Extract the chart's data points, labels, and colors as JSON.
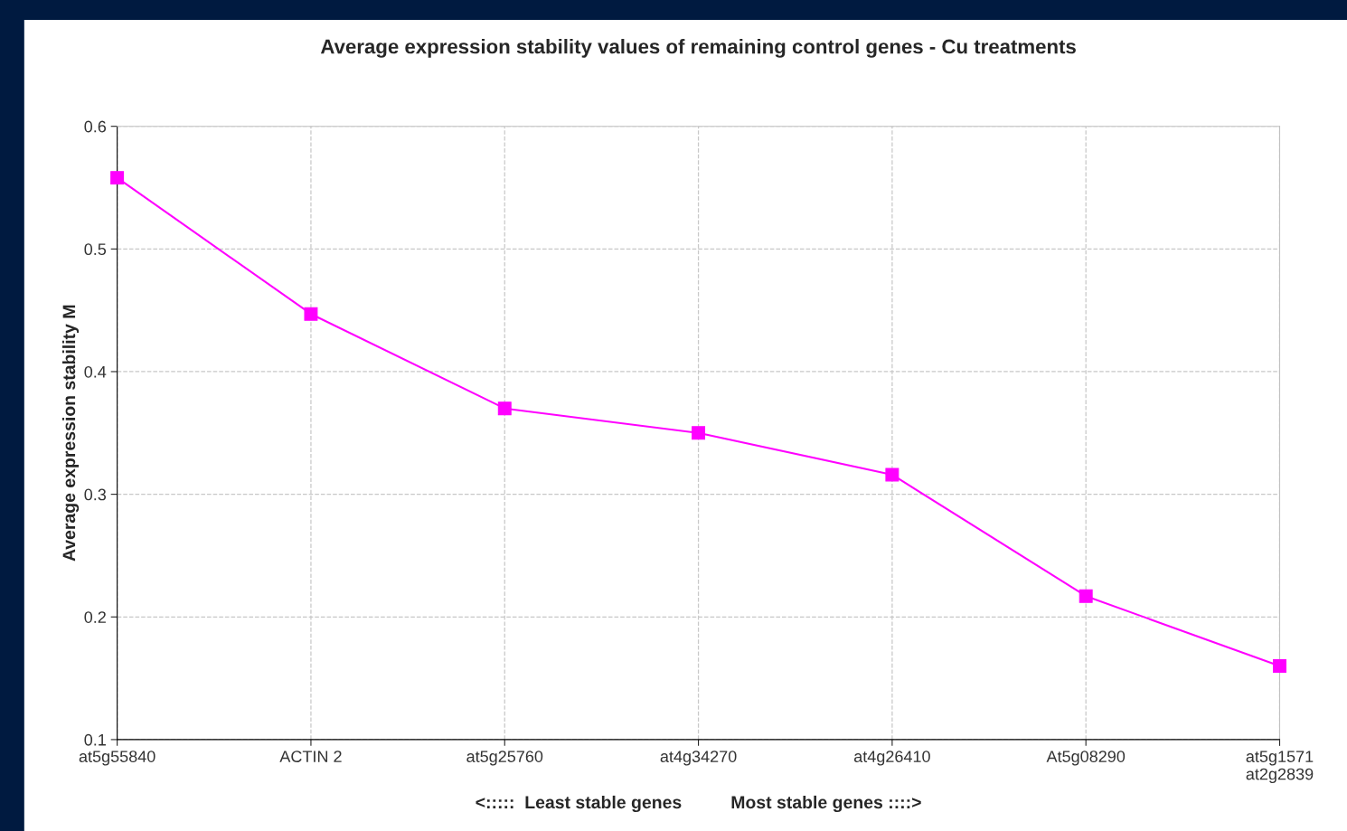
{
  "chart_data": {
    "type": "line",
    "title": "Average expression stability values of remaining control genes - Cu treatments",
    "ylabel": "Average expression stability M",
    "xlabel": "<:::::  Least stable genes          Most stable genes ::::>",
    "categories": [
      "at5g55840",
      "ACTIN 2",
      "at5g25760",
      "at4g34270",
      "at4g26410",
      "At5g08290",
      "at5g1571\nat2g2839"
    ],
    "series": [
      {
        "color": "#ff00ff",
        "values": [
          0.558,
          0.447,
          0.37,
          0.35,
          0.316,
          0.217,
          0.16
        ]
      }
    ],
    "ylim": [
      0.1,
      0.6
    ],
    "yticks": [
      0.1,
      0.2,
      0.3,
      0.4,
      0.5,
      0.6
    ],
    "grid": true,
    "marker": "square",
    "line_style": "solid",
    "legend": false
  }
}
